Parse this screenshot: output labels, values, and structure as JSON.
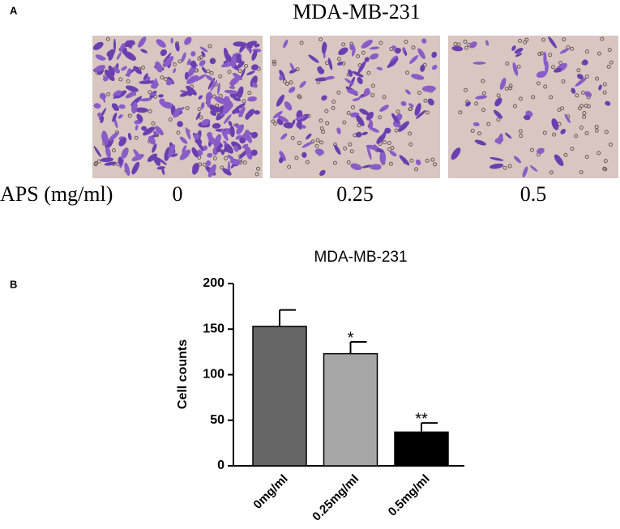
{
  "panel_a": {
    "label": "A",
    "title": "MDA-MB-231",
    "row_label": "APS (mg/ml)",
    "conditions": [
      "0",
      "0.25",
      "0.5"
    ]
  },
  "chart_data": {
    "type": "bar",
    "panel_label": "B",
    "title": "MDA-MB-231",
    "y_label": "Cell counts",
    "categories": [
      "0mg/ml",
      "0.25mg/ml",
      "0.5mg/ml"
    ],
    "values": [
      153,
      123,
      37
    ],
    "errors": [
      18,
      13,
      10
    ],
    "significance": [
      null,
      "*",
      "**"
    ],
    "colors": [
      "#666666",
      "#a6a6a6",
      "#000000"
    ],
    "ylim": [
      0,
      200
    ],
    "yticks": [
      0,
      50,
      100,
      150,
      200
    ],
    "grid": false
  }
}
